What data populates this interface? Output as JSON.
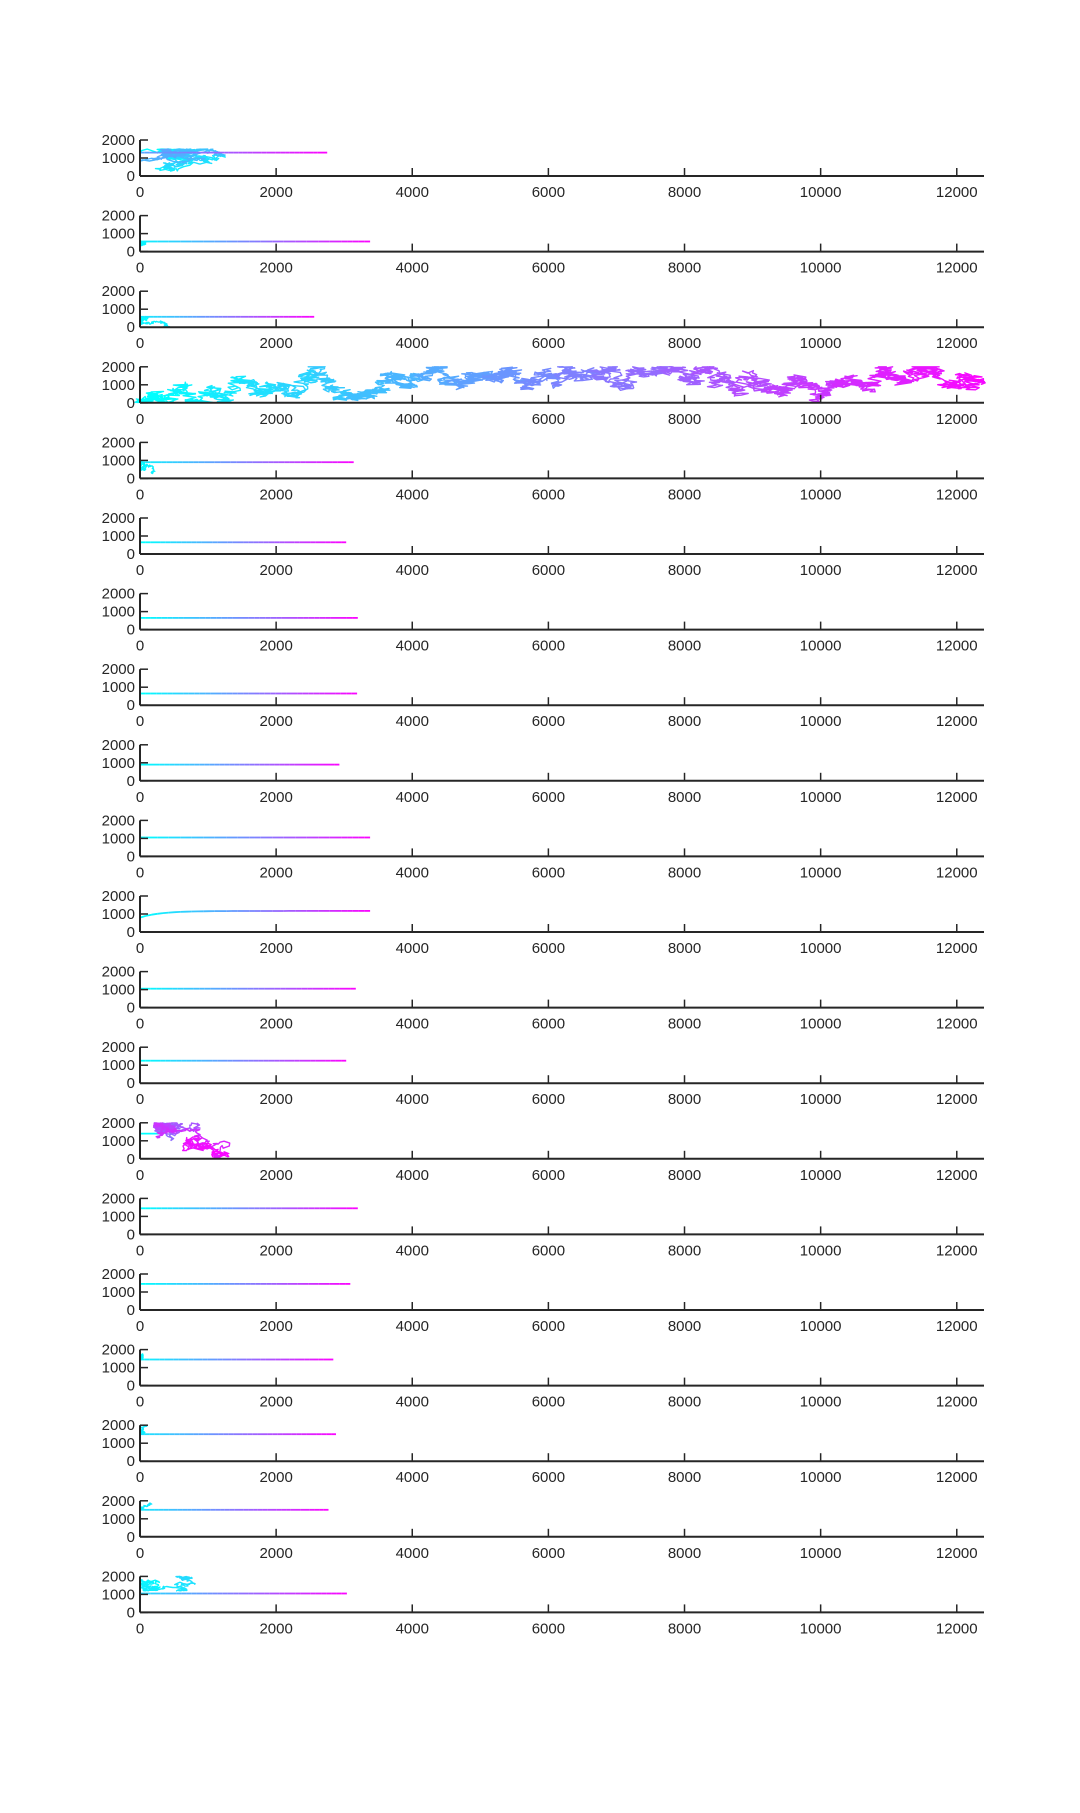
{
  "colors": {
    "start": "#00ffff",
    "end": "#ff00ff",
    "axis": "#262626",
    "background": "#ffffff"
  },
  "chart_data": {
    "type": "line",
    "layout": "20 stacked subplots sharing the same axis ranges",
    "grid": false,
    "legend": "none",
    "xlim": [
      0,
      12400
    ],
    "ylim": [
      0,
      2000
    ],
    "xticks": [
      0,
      2000,
      4000,
      6000,
      8000,
      10000,
      12000
    ],
    "xtick_labels": [
      "0",
      "2000",
      "4000",
      "6000",
      "8000",
      "10000",
      "12000"
    ],
    "yticks": [
      0,
      1000,
      2000
    ],
    "ytick_labels": [
      "0",
      "1000",
      "2000"
    ],
    "colormap": "cool (cyan at trajectory start to magenta at end)",
    "subplots": [
      {
        "pattern": "wander_then_flat",
        "wander_x": [
          0,
          2100
        ],
        "wander_y": [
          0,
          1500
        ],
        "flat_y": 1300,
        "flat_end_x": 2750,
        "seed": 11,
        "hue_at_wander_end": 0.35
      },
      {
        "pattern": "wander_then_flat",
        "wander_x": [
          0,
          150
        ],
        "wander_y": [
          0,
          560
        ],
        "flat_y": 560,
        "flat_end_x": 3380,
        "seed": 12,
        "hue_at_wander_end": 0.05
      },
      {
        "pattern": "wander_then_flat",
        "wander_x": [
          0,
          600
        ],
        "wander_y": [
          0,
          600
        ],
        "flat_y": 580,
        "flat_end_x": 2560,
        "seed": 13,
        "hue_at_wander_end": 0.08
      },
      {
        "pattern": "full_walk",
        "x_end": 12350,
        "y_range": [
          0,
          2000
        ],
        "seed": 14
      },
      {
        "pattern": "wander_then_flat",
        "wander_x": [
          0,
          420
        ],
        "wander_y": [
          0,
          1000
        ],
        "flat_y": 900,
        "flat_end_x": 3140,
        "seed": 15,
        "hue_at_wander_end": 0.06
      },
      {
        "pattern": "flat",
        "flat_y": 650,
        "flat_end_x": 3030,
        "seed": 16
      },
      {
        "pattern": "flat",
        "flat_y": 650,
        "flat_end_x": 3200,
        "seed": 17
      },
      {
        "pattern": "flat",
        "flat_y": 650,
        "flat_end_x": 3190,
        "seed": 18
      },
      {
        "pattern": "flat",
        "flat_y": 900,
        "flat_end_x": 2930,
        "seed": 19
      },
      {
        "pattern": "flat",
        "flat_y": 1050,
        "flat_end_x": 3380,
        "seed": 20
      },
      {
        "pattern": "flat_rise",
        "flat_y": 1050,
        "flat_end_x": 3380,
        "seed": 21
      },
      {
        "pattern": "flat",
        "flat_y": 1050,
        "flat_end_x": 3170,
        "seed": 22
      },
      {
        "pattern": "flat",
        "flat_y": 1250,
        "flat_end_x": 3030,
        "seed": 23
      },
      {
        "pattern": "wander_magenta",
        "wander_x": [
          100,
          2000
        ],
        "wander_y": [
          0,
          2000
        ],
        "seed": 24
      },
      {
        "pattern": "flat",
        "flat_y": 1450,
        "flat_end_x": 3200,
        "seed": 25
      },
      {
        "pattern": "flat",
        "flat_y": 1450,
        "flat_end_x": 3090,
        "seed": 26
      },
      {
        "pattern": "wander_then_flat",
        "wander_x": [
          0,
          120
        ],
        "wander_y": [
          1450,
          1900
        ],
        "flat_y": 1450,
        "flat_end_x": 2840,
        "seed": 27,
        "hue_at_wander_end": 0.04
      },
      {
        "pattern": "wander_then_flat",
        "wander_x": [
          0,
          480
        ],
        "wander_y": [
          1500,
          2000
        ],
        "flat_y": 1500,
        "flat_end_x": 2880,
        "seed": 28,
        "hue_at_wander_end": 0.1
      },
      {
        "pattern": "wander_then_flat",
        "wander_x": [
          0,
          380
        ],
        "wander_y": [
          1500,
          2000
        ],
        "flat_y": 1500,
        "flat_end_x": 2770,
        "seed": 29,
        "hue_at_wander_end": 0.1
      },
      {
        "pattern": "wander_then_flat",
        "wander_x": [
          0,
          1120
        ],
        "wander_y": [
          1200,
          2000
        ],
        "flat_y": 1050,
        "flat_end_x": 3040,
        "seed": 30,
        "hue_at_wander_end": 0.15
      }
    ]
  }
}
